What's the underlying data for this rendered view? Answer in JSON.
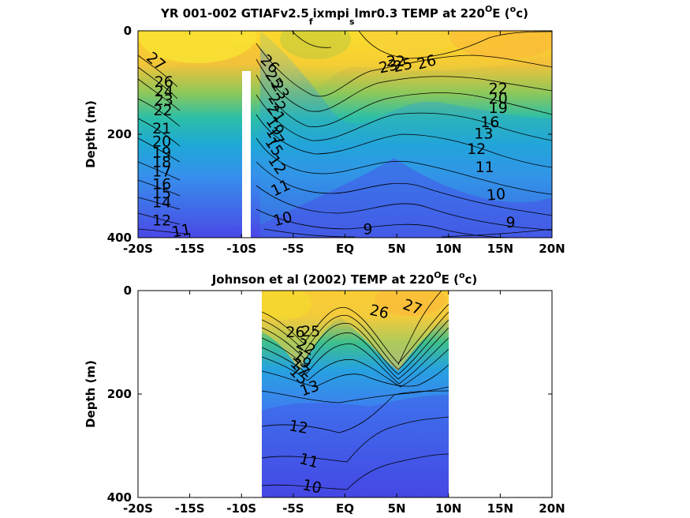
{
  "colors": {
    "deep": "#3b3ef0",
    "warm": "#f8e030",
    "contour": "#000000",
    "axis": "#000000"
  },
  "chart_data": [
    {
      "type": "heatmap",
      "title_parts": {
        "main": "YR 001-002 GTIAFv2.5",
        "sub1": "f",
        "mid": "ixmpi",
        "sub2": "s",
        "tail1": "lmr0.3 TEMP at 220",
        "sup1": "O",
        "tail2": "E (",
        "sup2": "o",
        "tail3": "c)"
      },
      "ylabel": "Depth (m)",
      "x_ticks": [
        "-20S",
        "-15S",
        "-10S",
        "-5S",
        "EQ",
        "5N",
        "10N",
        "15N",
        "20N"
      ],
      "y_ticks": [
        "0",
        "200",
        "400"
      ],
      "xlim": [
        -20,
        20
      ],
      "ylim": [
        400,
        0
      ],
      "data_extent": [
        -20,
        20
      ],
      "contour_labels": [
        {
          "text": "27",
          "lat": -18.3,
          "depth": 60,
          "rot": 40
        },
        {
          "text": "26",
          "lat": -17.5,
          "depth": 100,
          "rot": 0
        },
        {
          "text": "24",
          "lat": -17.5,
          "depth": 118,
          "rot": 0
        },
        {
          "text": "23",
          "lat": -17.5,
          "depth": 135,
          "rot": 0
        },
        {
          "text": "22",
          "lat": -17.6,
          "depth": 155,
          "rot": 0
        },
        {
          "text": "21",
          "lat": -17.7,
          "depth": 190,
          "rot": 0
        },
        {
          "text": "20",
          "lat": -17.7,
          "depth": 215,
          "rot": 0
        },
        {
          "text": "19",
          "lat": -17.7,
          "depth": 237,
          "rot": 0
        },
        {
          "text": "18",
          "lat": -17.7,
          "depth": 255,
          "rot": 0
        },
        {
          "text": "17",
          "lat": -17.7,
          "depth": 273,
          "rot": 0
        },
        {
          "text": "16",
          "lat": -17.7,
          "depth": 298,
          "rot": 0
        },
        {
          "text": "15",
          "lat": -17.7,
          "depth": 315,
          "rot": 0
        },
        {
          "text": "14",
          "lat": -17.7,
          "depth": 333,
          "rot": 0
        },
        {
          "text": "12",
          "lat": -17.7,
          "depth": 368,
          "rot": 0
        },
        {
          "text": "11",
          "lat": -15.8,
          "depth": 388,
          "rot": -10
        },
        {
          "text": "26",
          "lat": -7.3,
          "depth": 65,
          "rot": 45
        },
        {
          "text": "25",
          "lat": -6.9,
          "depth": 95,
          "rot": 55
        },
        {
          "text": "23",
          "lat": -6.3,
          "depth": 115,
          "rot": 55
        },
        {
          "text": "22",
          "lat": -6.6,
          "depth": 140,
          "rot": 55
        },
        {
          "text": "21",
          "lat": -6.7,
          "depth": 160,
          "rot": 55
        },
        {
          "text": "19",
          "lat": -6.8,
          "depth": 185,
          "rot": 55
        },
        {
          "text": "17",
          "lat": -6.8,
          "depth": 205,
          "rot": 55
        },
        {
          "text": "15",
          "lat": -6.9,
          "depth": 225,
          "rot": 55
        },
        {
          "text": "12",
          "lat": -6.6,
          "depth": 260,
          "rot": 55
        },
        {
          "text": "11",
          "lat": -6.2,
          "depth": 305,
          "rot": -25
        },
        {
          "text": "10",
          "lat": -6.0,
          "depth": 365,
          "rot": -15
        },
        {
          "text": "9",
          "lat": 2.2,
          "depth": 385,
          "rot": 0
        },
        {
          "text": "23",
          "lat": 4.2,
          "depth": 70,
          "rot": -12
        },
        {
          "text": "25",
          "lat": 5.6,
          "depth": 68,
          "rot": -12
        },
        {
          "text": "22",
          "lat": 4.9,
          "depth": 60,
          "rot": 0
        },
        {
          "text": "26",
          "lat": 7.9,
          "depth": 62,
          "rot": -15
        },
        {
          "text": "22",
          "lat": 14.8,
          "depth": 113,
          "rot": 0
        },
        {
          "text": "20",
          "lat": 14.8,
          "depth": 132,
          "rot": 0
        },
        {
          "text": "19",
          "lat": 14.8,
          "depth": 150,
          "rot": 0
        },
        {
          "text": "16",
          "lat": 14.0,
          "depth": 178,
          "rot": 0
        },
        {
          "text": "13",
          "lat": 13.4,
          "depth": 200,
          "rot": 0
        },
        {
          "text": "12",
          "lat": 12.7,
          "depth": 230,
          "rot": 0
        },
        {
          "text": "11",
          "lat": 13.5,
          "depth": 265,
          "rot": 0
        },
        {
          "text": "10",
          "lat": 14.6,
          "depth": 318,
          "rot": -5
        },
        {
          "text": "9",
          "lat": 16.0,
          "depth": 372,
          "rot": 0
        }
      ]
    },
    {
      "type": "heatmap",
      "title_parts": {
        "main": "Johnson et al (2002) TEMP at 220",
        "sup1": "O",
        "tail2": "E (",
        "sup2": "o",
        "tail3": "c)"
      },
      "ylabel": "Depth (m)",
      "x_ticks": [
        "-20S",
        "-15S",
        "-10S",
        "-5S",
        "EQ",
        "5N",
        "10N",
        "15N",
        "20N"
      ],
      "y_ticks": [
        "0",
        "200",
        "400"
      ],
      "xlim": [
        -20,
        20
      ],
      "ylim": [
        400,
        0
      ],
      "data_extent": [
        -8,
        10
      ],
      "contour_labels": [
        {
          "text": "27",
          "lat": 6.5,
          "depth": 33,
          "rot": 20
        },
        {
          "text": "26",
          "lat": 3.3,
          "depth": 42,
          "rot": 12
        },
        {
          "text": "26",
          "lat": -4.8,
          "depth": 82,
          "rot": 0
        },
        {
          "text": "25",
          "lat": -3.3,
          "depth": 80,
          "rot": 0
        },
        {
          "text": "22",
          "lat": -3.8,
          "depth": 110,
          "rot": 30
        },
        {
          "text": "19",
          "lat": -4.2,
          "depth": 135,
          "rot": 40
        },
        {
          "text": "17",
          "lat": -4.4,
          "depth": 150,
          "rot": 45
        },
        {
          "text": "15",
          "lat": -4.5,
          "depth": 165,
          "rot": 45
        },
        {
          "text": "13",
          "lat": -3.4,
          "depth": 190,
          "rot": -20
        },
        {
          "text": "12",
          "lat": -4.5,
          "depth": 265,
          "rot": 10
        },
        {
          "text": "11",
          "lat": -3.5,
          "depth": 330,
          "rot": 15
        },
        {
          "text": "10",
          "lat": -3.2,
          "depth": 380,
          "rot": 12
        }
      ]
    }
  ]
}
